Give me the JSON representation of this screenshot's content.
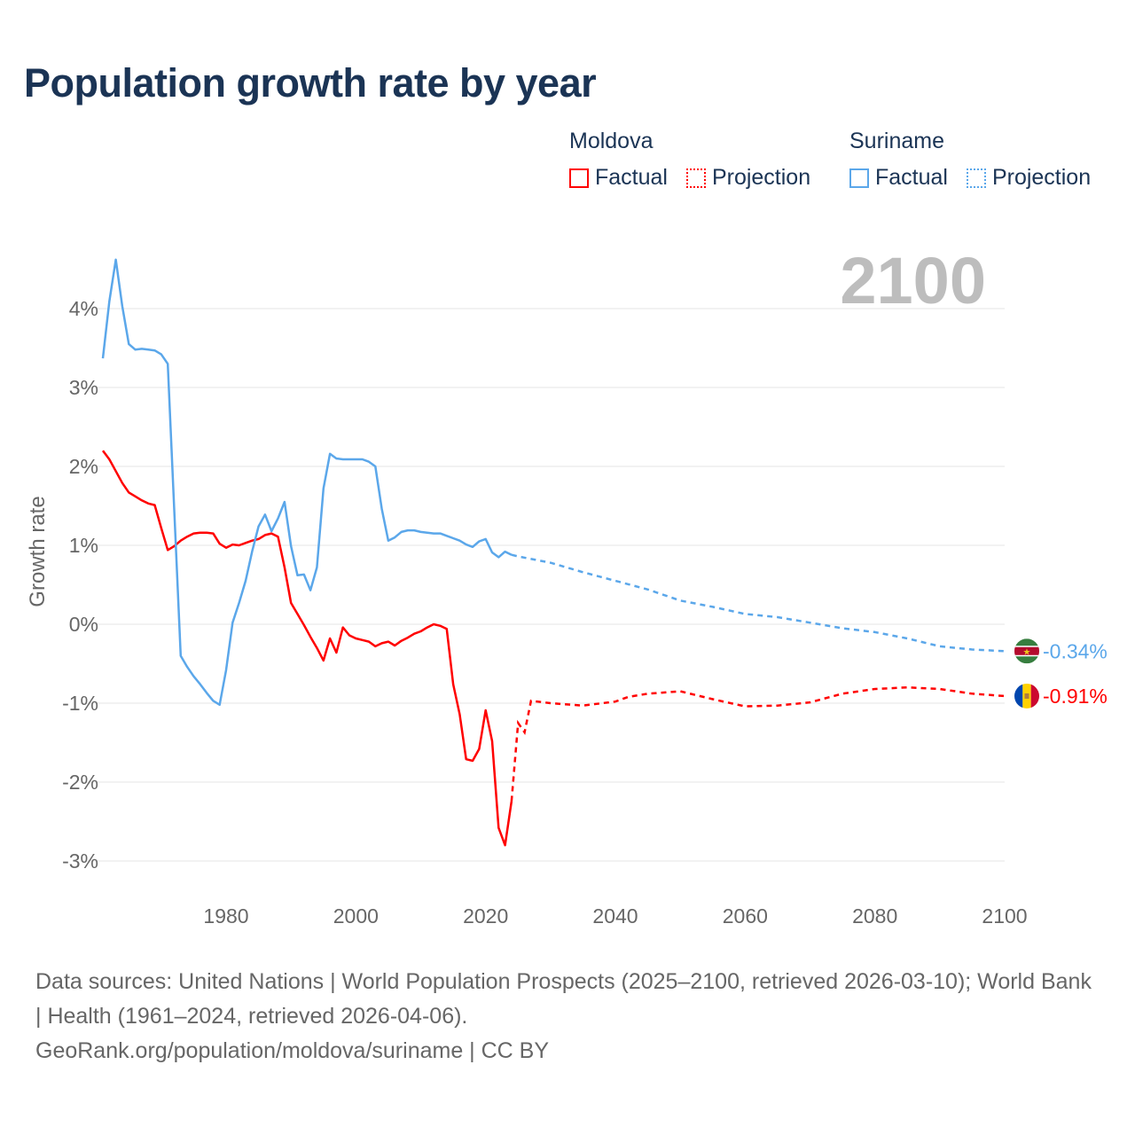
{
  "title": "Population growth rate by year",
  "legend": {
    "groups": [
      {
        "name": "Moldova",
        "factual": "Factual",
        "projection": "Projection",
        "color": "#ff0000"
      },
      {
        "name": "Suriname",
        "factual": "Factual",
        "projection": "Projection",
        "color": "#5ba7ea"
      }
    ]
  },
  "current_year_label": "2100",
  "footer": {
    "sources": "Data sources: United Nations | World Population Prospects (2025–2100, retrieved 2026-03-10); World Bank | Health (1961–2024, retrieved 2026-04-06).",
    "link": "GeoRank.org/population/moldova/suriname | CC BY"
  },
  "chart_data": {
    "type": "line",
    "title": "Population growth rate by year",
    "xlabel": "",
    "ylabel": "Growth rate",
    "xlim": [
      1961,
      2100
    ],
    "ylim": [
      -3.4,
      4.8
    ],
    "x_ticks": [
      1980,
      2000,
      2020,
      2040,
      2060,
      2080,
      2100
    ],
    "y_ticks": [
      -3,
      -2,
      -1,
      0,
      1,
      2,
      3,
      4
    ],
    "y_tick_labels": [
      "-3%",
      "-2%",
      "-1%",
      "0%",
      "1%",
      "2%",
      "3%",
      "4%"
    ],
    "grid": true,
    "legend_position": "top-right",
    "series": [
      {
        "name": "Moldova",
        "color": "#ff0000",
        "end_label": "-0.91%",
        "flag": "moldova-flag",
        "factual": {
          "x": [
            1961,
            1962,
            1963,
            1964,
            1965,
            1966,
            1967,
            1968,
            1969,
            1970,
            1971,
            1972,
            1973,
            1974,
            1975,
            1976,
            1977,
            1978,
            1979,
            1980,
            1981,
            1982,
            1983,
            1984,
            1985,
            1986,
            1987,
            1988,
            1989,
            1990,
            1991,
            1992,
            1993,
            1994,
            1995,
            1996,
            1997,
            1998,
            1999,
            2000,
            2001,
            2002,
            2003,
            2004,
            2005,
            2006,
            2007,
            2008,
            2009,
            2010,
            2011,
            2012,
            2013,
            2014,
            2015,
            2016,
            2017,
            2018,
            2019,
            2020,
            2021,
            2022,
            2023,
            2024
          ],
          "y": [
            2.2,
            2.09,
            1.94,
            1.79,
            1.67,
            1.62,
            1.57,
            1.53,
            1.51,
            1.22,
            0.94,
            0.99,
            1.06,
            1.11,
            1.15,
            1.16,
            1.16,
            1.15,
            1.02,
            0.97,
            1.01,
            1.0,
            1.03,
            1.06,
            1.08,
            1.13,
            1.15,
            1.11,
            0.72,
            0.27,
            0.13,
            -0.01,
            -0.16,
            -0.3,
            -0.46,
            -0.18,
            -0.36,
            -0.04,
            -0.14,
            -0.18,
            -0.2,
            -0.22,
            -0.28,
            -0.24,
            -0.22,
            -0.27,
            -0.21,
            -0.17,
            -0.12,
            -0.09,
            -0.04,
            0.0,
            -0.02,
            -0.06,
            -0.76,
            -1.14,
            -1.71,
            -1.73,
            -1.58,
            -1.09,
            -1.48,
            -2.58,
            -2.8,
            -2.24
          ]
        },
        "projection": {
          "x": [
            2024,
            2025,
            2026,
            2027,
            2030,
            2035,
            2040,
            2042,
            2045,
            2050,
            2055,
            2060,
            2065,
            2070,
            2075,
            2080,
            2085,
            2090,
            2095,
            2100
          ],
          "y": [
            -2.24,
            -1.25,
            -1.37,
            -0.97,
            -1.0,
            -1.03,
            -0.98,
            -0.92,
            -0.88,
            -0.85,
            -0.95,
            -1.04,
            -1.03,
            -0.99,
            -0.88,
            -0.82,
            -0.8,
            -0.82,
            -0.88,
            -0.91
          ]
        }
      },
      {
        "name": "Suriname",
        "color": "#5ba7ea",
        "end_label": "-0.34%",
        "flag": "suriname-flag",
        "factual": {
          "x": [
            1961,
            1962,
            1963,
            1964,
            1965,
            1966,
            1967,
            1968,
            1969,
            1970,
            1971,
            1972,
            1973,
            1974,
            1975,
            1976,
            1977,
            1978,
            1979,
            1980,
            1981,
            1982,
            1983,
            1984,
            1985,
            1986,
            1987,
            1988,
            1989,
            1990,
            1991,
            1992,
            1993,
            1994,
            1995,
            1996,
            1997,
            1998,
            1999,
            2000,
            2001,
            2002,
            2003,
            2004,
            2005,
            2006,
            2007,
            2008,
            2009,
            2010,
            2011,
            2012,
            2013,
            2014,
            2015,
            2016,
            2017,
            2018,
            2019,
            2020,
            2021,
            2022,
            2023,
            2024
          ],
          "y": [
            3.37,
            4.09,
            4.62,
            4.03,
            3.55,
            3.48,
            3.49,
            3.48,
            3.47,
            3.42,
            3.3,
            1.45,
            -0.4,
            -0.54,
            -0.66,
            -0.76,
            -0.87,
            -0.97,
            -1.02,
            -0.58,
            0.02,
            0.27,
            0.55,
            0.92,
            1.24,
            1.39,
            1.18,
            1.34,
            1.55,
            0.99,
            0.62,
            0.63,
            0.43,
            0.72,
            1.72,
            2.16,
            2.1,
            2.09,
            2.09,
            2.09,
            2.09,
            2.06,
            2.0,
            1.46,
            1.06,
            1.1,
            1.17,
            1.19,
            1.19,
            1.17,
            1.16,
            1.15,
            1.15,
            1.12,
            1.09,
            1.06,
            1.01,
            0.98,
            1.05,
            1.08,
            0.91,
            0.85,
            0.92,
            0.88
          ]
        },
        "projection": {
          "x": [
            2024,
            2025,
            2030,
            2035,
            2040,
            2045,
            2050,
            2055,
            2060,
            2065,
            2070,
            2075,
            2080,
            2085,
            2090,
            2095,
            2100
          ],
          "y": [
            0.88,
            0.86,
            0.78,
            0.66,
            0.55,
            0.44,
            0.3,
            0.22,
            0.13,
            0.09,
            0.02,
            -0.05,
            -0.1,
            -0.18,
            -0.28,
            -0.32,
            -0.34
          ]
        }
      }
    ]
  }
}
